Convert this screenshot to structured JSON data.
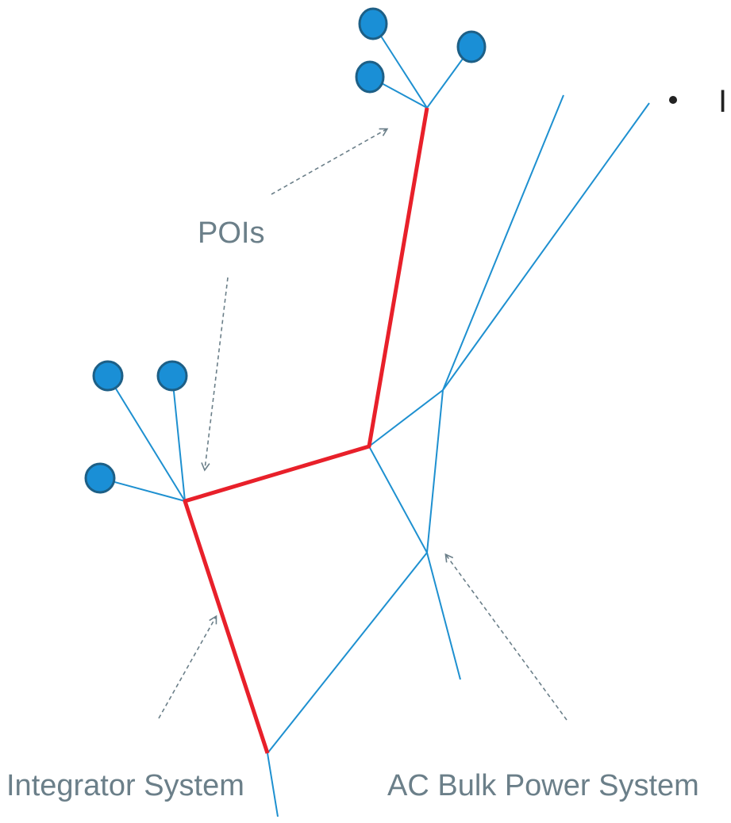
{
  "labels": {
    "pois": "POIs",
    "integrator_system": "Integrator System",
    "ac_bulk_power_system": "AC Bulk Power System",
    "bullet_text": "I"
  },
  "colors": {
    "integrator_line": "#e8202a",
    "bulk_line": "#1e90d0",
    "poi_fill": "#1a8fd6",
    "poi_stroke": "#1d5f86",
    "annotation": "#6b7f89"
  }
}
